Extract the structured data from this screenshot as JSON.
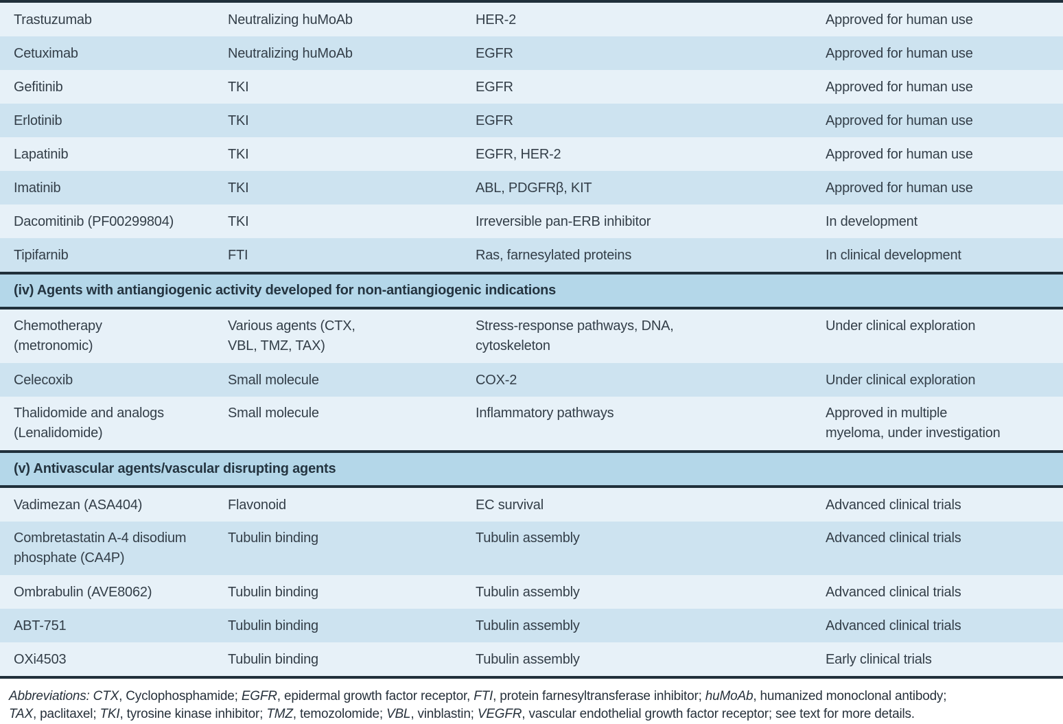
{
  "table": {
    "sections": [
      {
        "header": null,
        "rows": [
          {
            "agent": "Trastuzumab",
            "type": "Neutralizing huMoAb",
            "target": "HER-2",
            "status": "Approved for human use"
          },
          {
            "agent": "Cetuximab",
            "type": "Neutralizing huMoAb",
            "target": "EGFR",
            "status": "Approved for human use"
          },
          {
            "agent": "Gefitinib",
            "type": "TKI",
            "target": "EGFR",
            "status": "Approved for human use"
          },
          {
            "agent": "Erlotinib",
            "type": "TKI",
            "target": "EGFR",
            "status": "Approved for human use"
          },
          {
            "agent": "Lapatinib",
            "type": "TKI",
            "target": "EGFR, HER-2",
            "status": "Approved for human use"
          },
          {
            "agent": "Imatinib",
            "type": "TKI",
            "target": "ABL, PDGFRβ, KIT",
            "status": "Approved for human use"
          },
          {
            "agent": "Dacomitinib (PF00299804)",
            "type": "TKI",
            "target": "Irreversible pan-ERB inhibitor",
            "status": "In development"
          },
          {
            "agent": "Tipifarnib",
            "type": "FTI",
            "target": "Ras, farnesylated proteins",
            "status": "In clinical development"
          }
        ]
      },
      {
        "header": "(iv) Agents with antiangiogenic activity developed for non-antiangiogenic indications",
        "rows": [
          {
            "agent": "Chemotherapy\n(metronomic)",
            "type": "Various agents (CTX,\nVBL, TMZ, TAX)",
            "target": "Stress-response pathways, DNA,\ncytoskeleton",
            "status": "Under clinical exploration"
          },
          {
            "agent": "Celecoxib",
            "type": "Small molecule",
            "target": "COX-2",
            "status": "Under clinical exploration"
          },
          {
            "agent": "Thalidomide and analogs\n(Lenalidomide)",
            "type": "Small molecule",
            "target": "Inflammatory pathways",
            "status": "Approved in multiple\nmyeloma, under investigation"
          }
        ]
      },
      {
        "header": "(v) Antivascular agents/vascular disrupting agents",
        "rows": [
          {
            "agent": "Vadimezan (ASA404)",
            "type": "Flavonoid",
            "target": "EC survival",
            "status": "Advanced clinical trials"
          },
          {
            "agent": "Combretastatin A-4 disodium\nphosphate (CA4P)",
            "type": "Tubulin binding",
            "target": "Tubulin assembly",
            "status": "Advanced clinical trials"
          },
          {
            "agent": "Ombrabulin (AVE8062)",
            "type": "Tubulin binding",
            "target": "Tubulin assembly",
            "status": "Advanced clinical trials"
          },
          {
            "agent": "ABT-751",
            "type": "Tubulin binding",
            "target": "Tubulin assembly",
            "status": "Advanced clinical trials"
          },
          {
            "agent": "OXi4503",
            "type": "Tubulin binding",
            "target": "Tubulin assembly",
            "status": "Early clinical trials"
          }
        ]
      }
    ]
  },
  "footnote": {
    "lines": [
      {
        "segments": [
          {
            "text": "Abbreviations: CTX",
            "italic": true
          },
          {
            "text": ", Cyclophosphamide; ",
            "italic": false
          },
          {
            "text": "EGFR",
            "italic": true
          },
          {
            "text": ", epidermal growth factor receptor, ",
            "italic": false
          },
          {
            "text": "FTI",
            "italic": true
          },
          {
            "text": ", protein farnesyltransferase inhibitor; ",
            "italic": false
          },
          {
            "text": "huMoAb",
            "italic": true
          },
          {
            "text": ", humanized monoclonal antibody;",
            "italic": false
          }
        ]
      },
      {
        "segments": [
          {
            "text": "TAX",
            "italic": true
          },
          {
            "text": ", paclitaxel; ",
            "italic": false
          },
          {
            "text": "TKI",
            "italic": true
          },
          {
            "text": ", tyrosine kinase inhibitor; ",
            "italic": false
          },
          {
            "text": "TMZ",
            "italic": true
          },
          {
            "text": ", temozolomide; ",
            "italic": false
          },
          {
            "text": "VBL",
            "italic": true
          },
          {
            "text": ", vinblastin; ",
            "italic": false
          },
          {
            "text": "VEGFR",
            "italic": true
          },
          {
            "text": ", vascular endothelial growth factor receptor; see text for more details.",
            "italic": false
          }
        ]
      }
    ]
  },
  "colors": {
    "row_light": "#e7f1f8",
    "row_dark": "#cde3f0",
    "section_header_bg": "#b4d7e9",
    "rule_line": "#20303b",
    "text": "#333e48"
  }
}
